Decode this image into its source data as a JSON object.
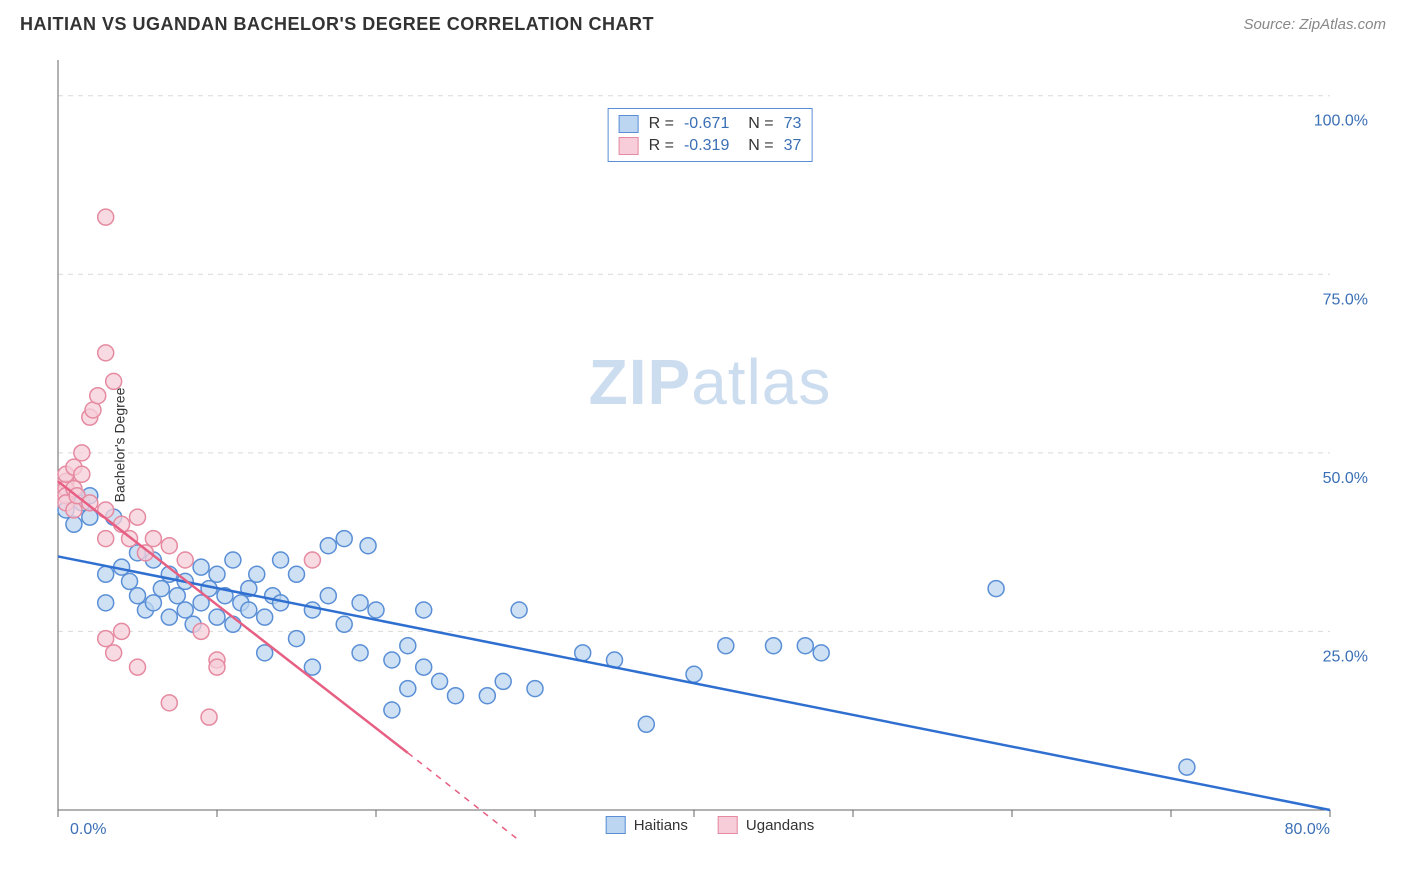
{
  "header": {
    "title": "HAITIAN VS UGANDAN BACHELOR'S DEGREE CORRELATION CHART",
    "source": "Source: ZipAtlas.com"
  },
  "chart": {
    "type": "scatter",
    "ylabel": "Bachelor's Degree",
    "xlim": [
      0,
      80
    ],
    "ylim": [
      0,
      105
    ],
    "x_tick_start": 0,
    "x_tick_step": 10,
    "x_tick_label_first": "0.0%",
    "x_tick_label_last": "80.0%",
    "y_ticks": [
      25,
      50,
      75,
      100
    ],
    "y_tick_labels": [
      "25.0%",
      "50.0%",
      "75.0%",
      "100.0%"
    ],
    "background_color": "#ffffff",
    "grid_color": "#d9d9d9",
    "axis_color": "#666666",
    "tick_label_color": "#3b6fb5",
    "tick_label_fontsize": 16,
    "marker_radius": 8,
    "marker_stroke_width": 1.5,
    "line_width": 2.5,
    "watermark_text_1": "ZIP",
    "watermark_text_2": "atlas",
    "series": [
      {
        "name": "Haitians",
        "fill": "#bcd5f0",
        "stroke": "#5a8fd6",
        "line_color": "#2f6fd0",
        "R": "-0.671",
        "N": "73",
        "trend": {
          "x1": 0,
          "y1": 35.5,
          "x2": 80,
          "y2": 0
        },
        "points": [
          [
            0.5,
            42
          ],
          [
            1,
            40
          ],
          [
            1.5,
            43
          ],
          [
            2,
            41
          ],
          [
            2,
            44
          ],
          [
            3,
            33
          ],
          [
            3,
            29
          ],
          [
            3.5,
            41
          ],
          [
            4,
            34
          ],
          [
            4.5,
            32
          ],
          [
            5,
            30
          ],
          [
            5,
            36
          ],
          [
            5.5,
            28
          ],
          [
            6,
            35
          ],
          [
            6,
            29
          ],
          [
            6.5,
            31
          ],
          [
            7,
            33
          ],
          [
            7,
            27
          ],
          [
            7.5,
            30
          ],
          [
            8,
            32
          ],
          [
            8,
            28
          ],
          [
            8.5,
            26
          ],
          [
            9,
            34
          ],
          [
            9,
            29
          ],
          [
            9.5,
            31
          ],
          [
            10,
            27
          ],
          [
            10,
            33
          ],
          [
            10.5,
            30
          ],
          [
            11,
            26
          ],
          [
            11,
            35
          ],
          [
            11.5,
            29
          ],
          [
            12,
            28
          ],
          [
            12,
            31
          ],
          [
            12.5,
            33
          ],
          [
            13,
            27
          ],
          [
            13,
            22
          ],
          [
            13.5,
            30
          ],
          [
            14,
            29
          ],
          [
            14,
            35
          ],
          [
            15,
            33
          ],
          [
            15,
            24
          ],
          [
            16,
            28
          ],
          [
            16,
            20
          ],
          [
            17,
            30
          ],
          [
            17,
            37
          ],
          [
            18,
            26
          ],
          [
            18,
            38
          ],
          [
            19,
            29
          ],
          [
            19,
            22
          ],
          [
            19.5,
            37
          ],
          [
            20,
            28
          ],
          [
            21,
            14
          ],
          [
            21,
            21
          ],
          [
            22,
            17
          ],
          [
            22,
            23
          ],
          [
            23,
            20
          ],
          [
            23,
            28
          ],
          [
            24,
            18
          ],
          [
            25,
            16
          ],
          [
            27,
            16
          ],
          [
            28,
            18
          ],
          [
            29,
            28
          ],
          [
            30,
            17
          ],
          [
            33,
            22
          ],
          [
            35,
            21
          ],
          [
            37,
            12
          ],
          [
            40,
            19
          ],
          [
            42,
            23
          ],
          [
            45,
            23
          ],
          [
            47,
            23
          ],
          [
            48,
            22
          ],
          [
            59,
            31
          ],
          [
            71,
            6
          ]
        ]
      },
      {
        "name": "Ugandans",
        "fill": "#f6cdd8",
        "stroke": "#e58aa0",
        "line_color": "#e75f82",
        "R": "-0.319",
        "N": "37",
        "trend": {
          "x1": 0,
          "y1": 46,
          "x2": 22,
          "y2": 8
        },
        "trend_dash_extend": {
          "x1": 22,
          "y1": 8,
          "x2": 30,
          "y2": -6
        },
        "points": [
          [
            0.5,
            46
          ],
          [
            0.5,
            45
          ],
          [
            0.5,
            44
          ],
          [
            0.5,
            43
          ],
          [
            0.5,
            47
          ],
          [
            1,
            45
          ],
          [
            1,
            42
          ],
          [
            1,
            48
          ],
          [
            1.2,
            44
          ],
          [
            1.5,
            47
          ],
          [
            1.5,
            50
          ],
          [
            2,
            43
          ],
          [
            2,
            55
          ],
          [
            2.2,
            56
          ],
          [
            2.5,
            58
          ],
          [
            3,
            83
          ],
          [
            3,
            64
          ],
          [
            3.5,
            60
          ],
          [
            3,
            42
          ],
          [
            3,
            38
          ],
          [
            3,
            24
          ],
          [
            3.5,
            22
          ],
          [
            4,
            25
          ],
          [
            4,
            40
          ],
          [
            4.5,
            38
          ],
          [
            5,
            41
          ],
          [
            5,
            20
          ],
          [
            5.5,
            36
          ],
          [
            6,
            38
          ],
          [
            7,
            37
          ],
          [
            7,
            15
          ],
          [
            8,
            35
          ],
          [
            9,
            25
          ],
          [
            9.5,
            13
          ],
          [
            10,
            21
          ],
          [
            10,
            20
          ],
          [
            16,
            35
          ]
        ]
      }
    ]
  },
  "legend_bottom": [
    {
      "label": "Haitians",
      "fill": "#bcd5f0",
      "stroke": "#5a8fd6"
    },
    {
      "label": "Ugandans",
      "fill": "#f6cdd8",
      "stroke": "#e58aa0"
    }
  ]
}
